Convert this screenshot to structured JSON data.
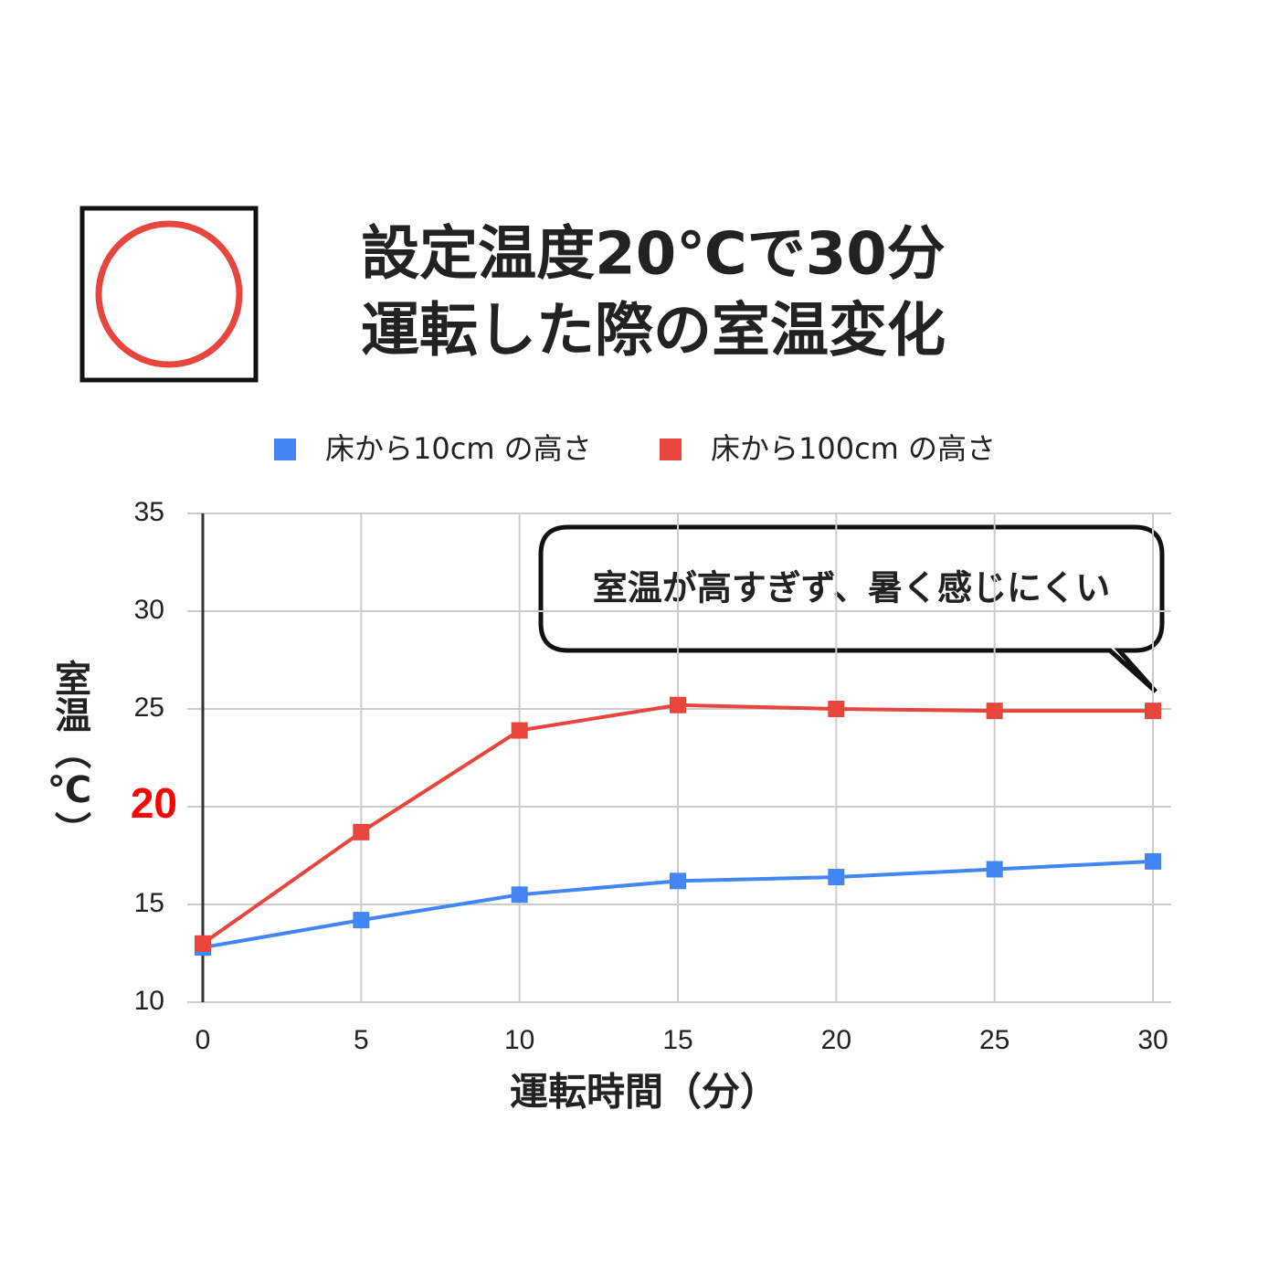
{
  "chart_data": {
    "type": "line",
    "title": [
      "設定温度20℃で30分",
      "運転した際の室温変化"
    ],
    "x": [
      0,
      5,
      10,
      15,
      20,
      25,
      30
    ],
    "series": [
      {
        "name": "床から10cm の高さ",
        "color": "#4285f4",
        "values": [
          12.8,
          14.2,
          15.5,
          16.2,
          16.4,
          16.8,
          17.2
        ]
      },
      {
        "name": "床から100cm の高さ",
        "color": "#e8453c",
        "values": [
          13.0,
          18.7,
          23.9,
          25.2,
          25.0,
          24.9,
          24.9
        ]
      }
    ],
    "xlim": [
      0,
      30
    ],
    "xticks": [
      0,
      5,
      10,
      15,
      20,
      25,
      30
    ],
    "ylim": [
      10,
      35
    ],
    "yticks": [
      10,
      15,
      20,
      25,
      30,
      35
    ],
    "highlighted_ytick": 20,
    "highlight_color": "#ff0000",
    "grid": true,
    "legend": "top",
    "xlabel": "運転時間（分）",
    "ylabel": "室温（℃）",
    "annotation": "室温が高すぎず、暑く感じにくい"
  }
}
